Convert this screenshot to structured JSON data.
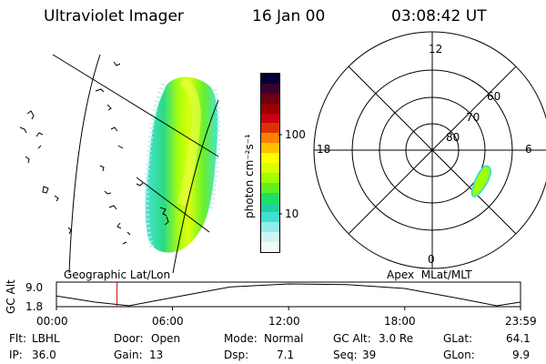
{
  "header": {
    "instrument": "Ultraviolet Imager",
    "date": "16 Jan 00",
    "time": "03:08:42 UT"
  },
  "colorbar": {
    "unit_label": "photon cm⁻²s⁻¹",
    "tick_labels": [
      "100",
      "10"
    ],
    "colors": [
      "#000030",
      "#3a0030",
      "#6a0010",
      "#9a0000",
      "#c80010",
      "#e03000",
      "#ff8000",
      "#ffc000",
      "#ffff00",
      "#d8ff00",
      "#a0ff00",
      "#60f020",
      "#20e060",
      "#20d0a0",
      "#40e0d0",
      "#90eee8",
      "#d0f4f4",
      "#f4f8fa"
    ]
  },
  "left_panel": {
    "caption": "Geographic Lat/Lon"
  },
  "right_panel": {
    "caption": "Apex  MLat/MLT",
    "mlt_labels": {
      "top": "12",
      "bottom": "0",
      "left": "18",
      "right": "6"
    },
    "lat_labels": [
      "60",
      "70",
      "80"
    ]
  },
  "altitude_plot": {
    "ylabel": "GC Alt",
    "y_ticks": [
      "9.0",
      "1.8"
    ],
    "x_ticks": [
      "00:00",
      "06:00",
      "12:00",
      "18:00",
      "23:59"
    ],
    "marker_color": "#cc0000"
  },
  "chart_data": {
    "type": "line",
    "title": "",
    "xlabel": "",
    "ylabel": "GC Alt",
    "x_range": [
      "00:00",
      "23:59"
    ],
    "ylim": [
      1.8,
      9.0
    ],
    "x": [
      "00:00",
      "02:00",
      "03:45",
      "06:00",
      "09:00",
      "12:00",
      "15:00",
      "18:00",
      "21:00",
      "22:45",
      "23:59"
    ],
    "values": [
      5.0,
      3.0,
      1.8,
      4.5,
      8.0,
      9.0,
      8.8,
      7.5,
      4.0,
      1.8,
      3.0
    ],
    "current_time": "03:08"
  },
  "footer": {
    "row1": [
      {
        "label": "Flt:",
        "value": "LBHL"
      },
      {
        "label": "Door:",
        "value": "Open"
      },
      {
        "label": "Mode:",
        "value": "Normal"
      },
      {
        "label": "GC Alt:",
        "value": "3.0 Re"
      },
      {
        "label": "GLat:",
        "value": "64.1"
      }
    ],
    "row2": [
      {
        "label": "IP:",
        "value": "36.0"
      },
      {
        "label": "Gain:",
        "value": "13"
      },
      {
        "label": "Dsp:",
        "value": "7.1"
      },
      {
        "label": "Seq:",
        "value": "39"
      },
      {
        "label": "GLon:",
        "value": "9.9"
      }
    ]
  }
}
